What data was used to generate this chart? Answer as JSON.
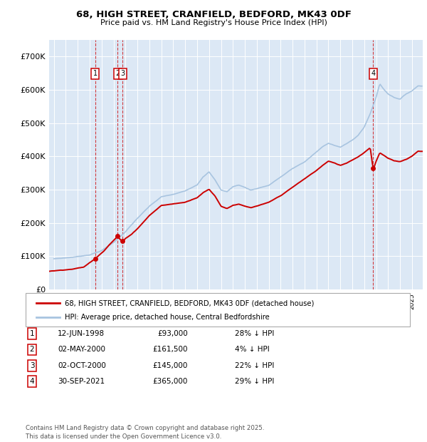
{
  "title_line1": "68, HIGH STREET, CRANFIELD, BEDFORD, MK43 0DF",
  "title_line2": "Price paid vs. HM Land Registry's House Price Index (HPI)",
  "hpi_color": "#a8c4e0",
  "price_color": "#cc0000",
  "background_color": "#dce8f5",
  "sale_points": [
    {
      "date_year": 1998.45,
      "price": 93000,
      "label": "1"
    },
    {
      "date_year": 2000.33,
      "price": 161500,
      "label": "2"
    },
    {
      "date_year": 2000.75,
      "price": 145000,
      "label": "3"
    },
    {
      "date_year": 2021.75,
      "price": 365000,
      "label": "4"
    }
  ],
  "legend_red": "68, HIGH STREET, CRANFIELD, BEDFORD, MK43 0DF (detached house)",
  "legend_blue": "HPI: Average price, detached house, Central Bedfordshire",
  "table_entries": [
    {
      "num": "1",
      "date": "12-JUN-1998",
      "price": "£93,000",
      "note": "28% ↓ HPI"
    },
    {
      "num": "2",
      "date": "02-MAY-2000",
      "price": "£161,500",
      "note": "4% ↓ HPI"
    },
    {
      "num": "3",
      "date": "02-OCT-2000",
      "price": "£145,000",
      "note": "22% ↓ HPI"
    },
    {
      "num": "4",
      "date": "30-SEP-2021",
      "price": "£365,000",
      "note": "29% ↓ HPI"
    }
  ],
  "footnote": "Contains HM Land Registry data © Crown copyright and database right 2025.\nThis data is licensed under the Open Government Licence v3.0.",
  "ylim": [
    0,
    750000
  ],
  "yticks": [
    0,
    100000,
    200000,
    300000,
    400000,
    500000,
    600000,
    700000
  ],
  "ytick_labels": [
    "£0",
    "£100K",
    "£200K",
    "£300K",
    "£400K",
    "£500K",
    "£600K",
    "£700K"
  ],
  "xlim_start": 1994.6,
  "xlim_end": 2025.9,
  "hpi_knots": [
    [
      1995.0,
      92000
    ],
    [
      1996.0,
      95000
    ],
    [
      1997.0,
      99000
    ],
    [
      1998.0,
      105000
    ],
    [
      1999.0,
      118000
    ],
    [
      2000.0,
      142000
    ],
    [
      2001.0,
      175000
    ],
    [
      2002.0,
      215000
    ],
    [
      2003.0,
      250000
    ],
    [
      2004.0,
      278000
    ],
    [
      2005.0,
      285000
    ],
    [
      2006.0,
      295000
    ],
    [
      2007.0,
      315000
    ],
    [
      2007.5,
      340000
    ],
    [
      2008.0,
      355000
    ],
    [
      2008.5,
      330000
    ],
    [
      2009.0,
      300000
    ],
    [
      2009.5,
      295000
    ],
    [
      2010.0,
      310000
    ],
    [
      2010.5,
      315000
    ],
    [
      2011.0,
      308000
    ],
    [
      2011.5,
      300000
    ],
    [
      2012.0,
      305000
    ],
    [
      2013.0,
      315000
    ],
    [
      2014.0,
      340000
    ],
    [
      2015.0,
      365000
    ],
    [
      2016.0,
      385000
    ],
    [
      2017.0,
      415000
    ],
    [
      2017.5,
      430000
    ],
    [
      2018.0,
      440000
    ],
    [
      2018.5,
      435000
    ],
    [
      2019.0,
      430000
    ],
    [
      2019.5,
      440000
    ],
    [
      2020.0,
      450000
    ],
    [
      2020.5,
      465000
    ],
    [
      2021.0,
      490000
    ],
    [
      2021.5,
      530000
    ],
    [
      2022.0,
      580000
    ],
    [
      2022.3,
      620000
    ],
    [
      2022.6,
      605000
    ],
    [
      2023.0,
      590000
    ],
    [
      2023.5,
      580000
    ],
    [
      2024.0,
      575000
    ],
    [
      2024.5,
      590000
    ],
    [
      2025.0,
      600000
    ],
    [
      2025.5,
      615000
    ]
  ],
  "price_knots": [
    [
      1994.6,
      55000
    ],
    [
      1995.5,
      58000
    ],
    [
      1996.5,
      62000
    ],
    [
      1997.5,
      68000
    ],
    [
      1998.45,
      93000
    ],
    [
      1998.8,
      105000
    ],
    [
      1999.2,
      118000
    ],
    [
      1999.6,
      135000
    ],
    [
      2000.33,
      161500
    ],
    [
      2000.75,
      145000
    ],
    [
      2001.0,
      155000
    ],
    [
      2001.5,
      168000
    ],
    [
      2002.0,
      185000
    ],
    [
      2002.5,
      205000
    ],
    [
      2003.0,
      225000
    ],
    [
      2003.5,
      240000
    ],
    [
      2004.0,
      255000
    ],
    [
      2005.0,
      260000
    ],
    [
      2006.0,
      265000
    ],
    [
      2007.0,
      280000
    ],
    [
      2007.5,
      295000
    ],
    [
      2008.0,
      305000
    ],
    [
      2008.5,
      285000
    ],
    [
      2009.0,
      255000
    ],
    [
      2009.5,
      248000
    ],
    [
      2010.0,
      258000
    ],
    [
      2010.5,
      262000
    ],
    [
      2011.0,
      255000
    ],
    [
      2011.5,
      250000
    ],
    [
      2012.0,
      255000
    ],
    [
      2013.0,
      265000
    ],
    [
      2014.0,
      285000
    ],
    [
      2015.0,
      310000
    ],
    [
      2016.0,
      335000
    ],
    [
      2017.0,
      360000
    ],
    [
      2017.5,
      375000
    ],
    [
      2018.0,
      388000
    ],
    [
      2018.5,
      382000
    ],
    [
      2019.0,
      375000
    ],
    [
      2019.5,
      382000
    ],
    [
      2020.0,
      392000
    ],
    [
      2020.5,
      402000
    ],
    [
      2021.0,
      415000
    ],
    [
      2021.5,
      430000
    ],
    [
      2021.75,
      365000
    ],
    [
      2022.0,
      390000
    ],
    [
      2022.3,
      415000
    ],
    [
      2022.6,
      408000
    ],
    [
      2023.0,
      398000
    ],
    [
      2023.5,
      390000
    ],
    [
      2024.0,
      388000
    ],
    [
      2024.5,
      395000
    ],
    [
      2025.0,
      405000
    ],
    [
      2025.5,
      420000
    ]
  ]
}
